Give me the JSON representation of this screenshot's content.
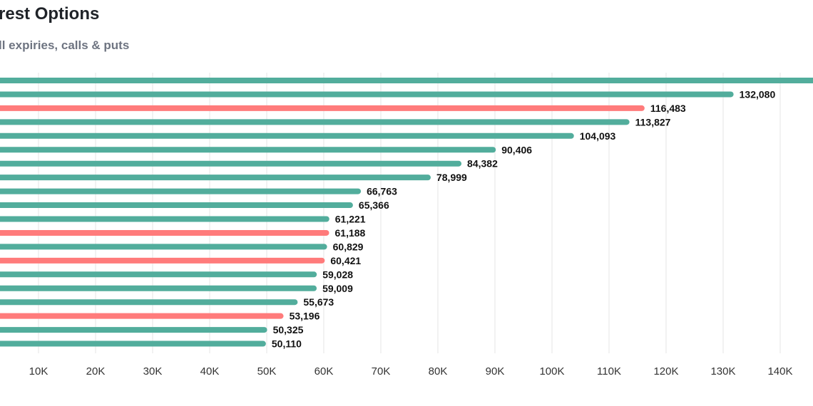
{
  "chart_data": {
    "type": "bar",
    "orientation": "horizontal",
    "title": "rest Options",
    "subtitle": "ll expiries, calls & puts",
    "values": [
      150000,
      132080,
      116483,
      113827,
      104093,
      90406,
      84382,
      78999,
      66763,
      65366,
      61221,
      61188,
      60829,
      60421,
      59028,
      59009,
      55673,
      53196,
      50325,
      50110
    ],
    "data_labels": [
      "",
      "132,080",
      "116,483",
      "113,827",
      "104,093",
      "90,406",
      "84,382",
      "78,999",
      "66,763",
      "65,366",
      "61,221",
      "61,188",
      "60,829",
      "60,421",
      "59,028",
      "59,009",
      "55,673",
      "53,196",
      "50,325",
      "50,110"
    ],
    "bar_types": [
      "call",
      "call",
      "put",
      "call",
      "call",
      "call",
      "call",
      "call",
      "call",
      "call",
      "call",
      "put",
      "call",
      "put",
      "call",
      "call",
      "call",
      "put",
      "call",
      "call"
    ],
    "colors": {
      "call": "#52ad9c",
      "put": "#ff7b7b",
      "grid": "#e5e5e5"
    },
    "x_ticks": [
      10000,
      20000,
      30000,
      40000,
      50000,
      60000,
      70000,
      80000,
      90000,
      100000,
      110000,
      120000,
      130000,
      140000
    ],
    "x_tick_labels": [
      "10K",
      "20K",
      "30K",
      "40K",
      "50K",
      "60K",
      "70K",
      "80K",
      "90K",
      "100K",
      "110K",
      "120K",
      "130K",
      "140K"
    ],
    "xlim": [
      0,
      150000
    ],
    "grid": true
  }
}
